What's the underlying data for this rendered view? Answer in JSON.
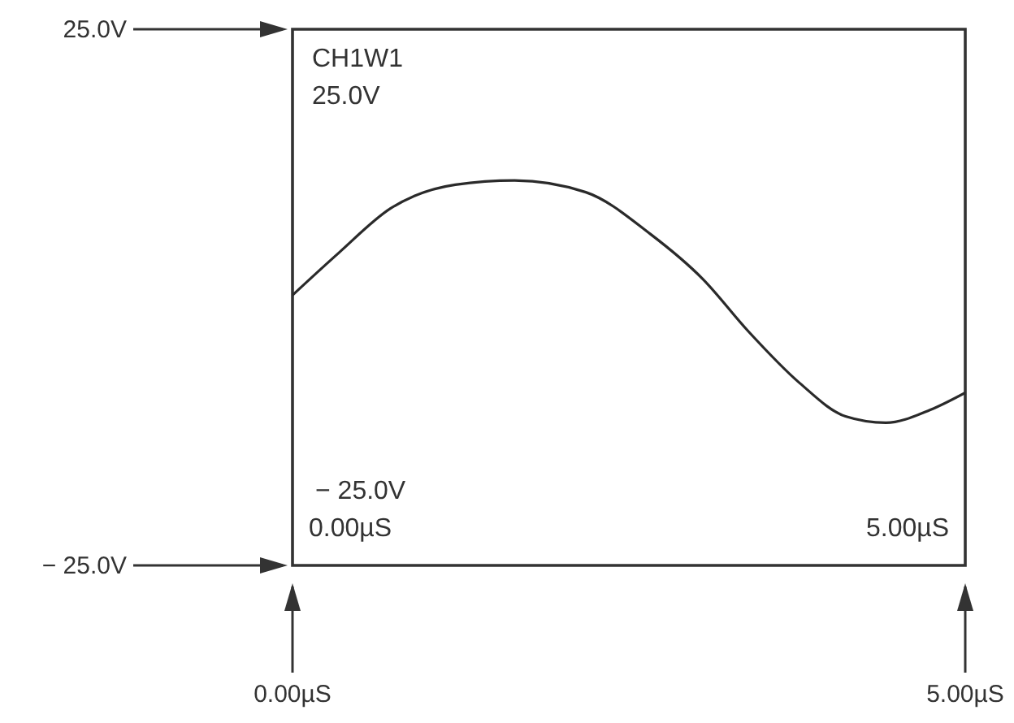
{
  "chart_data": {
    "type": "line",
    "x": [
      0,
      0.34,
      0.73,
      1.21,
      1.65,
      2.18,
      2.66,
      3.05,
      3.39,
      3.77,
      4.11,
      4.41,
      4.74,
      5.0
    ],
    "series": [
      {
        "color": "#2a2a2a",
        "values": [
          0.2,
          4.1,
          8.3,
          10.5,
          10.9,
          9.8,
          5.9,
          1.7,
          -3.2,
          -8.0,
          -11.1,
          -11.7,
          -10.5,
          -8.9
        ]
      }
    ],
    "xlim": [
      0,
      5
    ],
    "ylim": [
      -25,
      25
    ],
    "xticks": [
      {
        "value": 0,
        "label": "0.00µS"
      },
      {
        "value": 5,
        "label": "5.00µS"
      }
    ],
    "yticks": [
      {
        "value": -25,
        "label": "− 25.0V"
      },
      {
        "value": 25,
        "label": "25.0V"
      }
    ],
    "marker": "none",
    "line_style": "solid",
    "annotations": [
      "CH1W1",
      "25.0V",
      "− 25.0V",
      "0.00µS",
      "5.00µS"
    ]
  }
}
